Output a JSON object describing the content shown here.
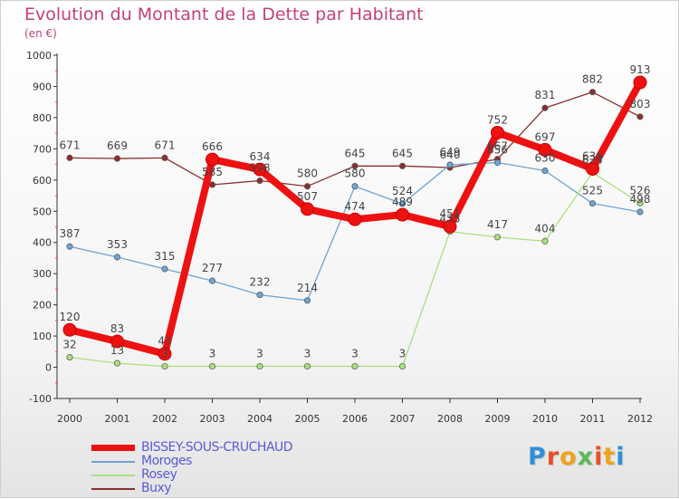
{
  "header": {
    "title": "Evolution du Montant de la Dette par Habitant",
    "unit": "(en €)"
  },
  "logo": {
    "text": "Proxiti",
    "letter_colors": [
      "#2f8fd6",
      "#e8502a",
      "#f0a21b",
      "#5cb85c",
      "#e8502a",
      "#f0a21b",
      "#2f8fd6"
    ]
  },
  "chart_data": {
    "type": "line",
    "x": [
      "2000",
      "2001",
      "2002",
      "2003",
      "2004",
      "2005",
      "2006",
      "2007",
      "2008",
      "2009",
      "2010",
      "2011",
      "2012"
    ],
    "ylim": [
      -100,
      1000
    ],
    "y_ticks": [
      -100,
      0,
      100,
      200,
      300,
      400,
      500,
      600,
      700,
      800,
      900,
      1000
    ],
    "grid": false,
    "legend_position": "bottom-left",
    "series": [
      {
        "name": "BISSEY-SOUS-CRUCHAUD",
        "color": "#ee1111",
        "values": [
          120,
          83,
          43,
          666,
          634,
          507,
          474,
          489,
          451,
          752,
          697,
          636,
          913
        ],
        "labels": [
          "120",
          "83",
          "43",
          "666",
          "634",
          "507",
          "474",
          "489",
          "451",
          "752",
          "697",
          "636",
          "913"
        ]
      },
      {
        "name": "Moroges",
        "color": "#6ea4d6",
        "values": [
          387,
          353,
          315,
          277,
          232,
          214,
          580,
          524,
          649,
          656,
          630,
          525,
          498
        ],
        "labels": [
          "387",
          "353",
          "315",
          "277",
          "232",
          "214",
          "580",
          "524",
          "649",
          "656",
          "630",
          "525",
          "498"
        ]
      },
      {
        "name": "Rosey",
        "color": "#a9e07e",
        "values": [
          32,
          13,
          3,
          3,
          3,
          3,
          3,
          3,
          435,
          417,
          404,
          624,
          526
        ],
        "labels": [
          "32",
          "13",
          "3",
          "3",
          "3",
          "3",
          "3",
          "3",
          "435",
          "417",
          "404",
          "624",
          "526"
        ]
      },
      {
        "name": "Buxy",
        "color": "#8a2f2f",
        "values": [
          671,
          669,
          671,
          585,
          598,
          580,
          645,
          645,
          640,
          667,
          831,
          882,
          803
        ],
        "labels": [
          "671",
          "669",
          "671",
          "585",
          "598",
          "580",
          "645",
          "645",
          "640",
          "667",
          "831",
          "882",
          "803"
        ]
      }
    ]
  }
}
